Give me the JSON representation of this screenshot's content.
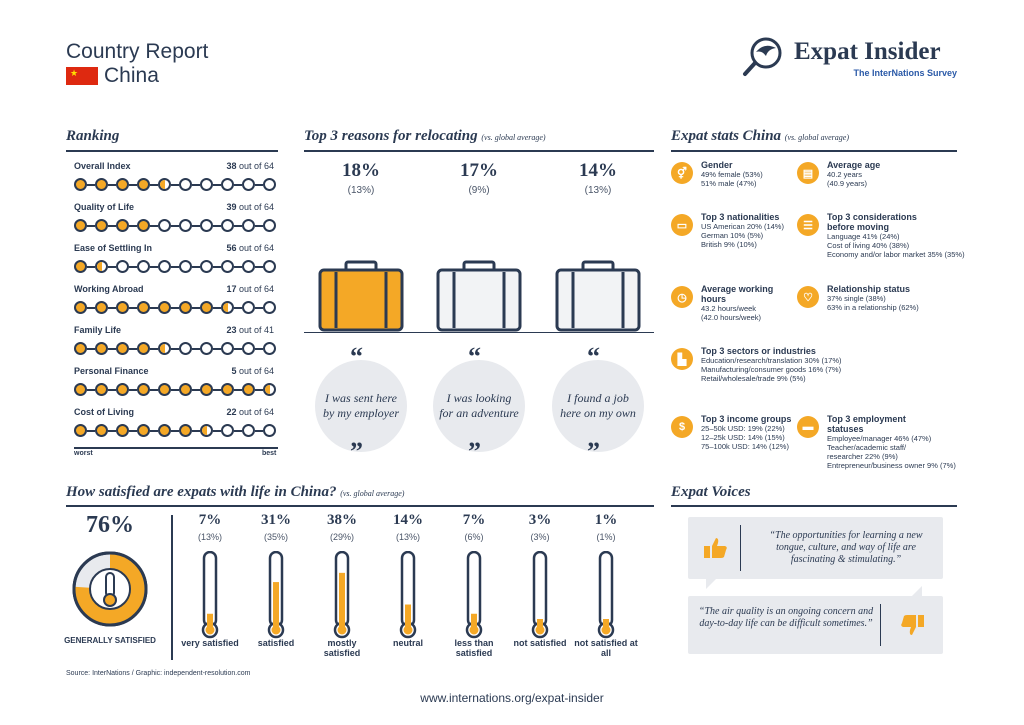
{
  "header": {
    "report_title": "Country Report",
    "country": "China",
    "brand_name": "Expat Insider",
    "brand_sub": "The InterNations Survey"
  },
  "ranking": {
    "title": "Ranking",
    "items": [
      {
        "label": "Overall Index",
        "rank": "38",
        "of": "out of 64",
        "fill": 4.5
      },
      {
        "label": "Quality of Life",
        "rank": "39",
        "of": "out of 64",
        "fill": 4
      },
      {
        "label": "Ease of Settling In",
        "rank": "56",
        "of": "out of 64",
        "fill": 1.5
      },
      {
        "label": "Working Abroad",
        "rank": "17",
        "of": "out of 64",
        "fill": 7.5
      },
      {
        "label": "Family Life",
        "rank": "23",
        "of": "out of 41",
        "fill": 4.5
      },
      {
        "label": "Personal Finance",
        "rank": "5",
        "of": "out of 64",
        "fill": 9.5
      },
      {
        "label": "Cost of Living",
        "rank": "22",
        "of": "out of 64",
        "fill": 6.5
      }
    ],
    "worst": "worst",
    "best": "best"
  },
  "reasons": {
    "title": "Top 3 reasons for relocating",
    "note": "(vs. global average)",
    "items": [
      {
        "pct": "18%",
        "global": "(13%)",
        "text": "I was sent here by my employer",
        "color": "#f4a826"
      },
      {
        "pct": "17%",
        "global": "(9%)",
        "text": "I was looking for an adventure",
        "color": "#f2f3f5"
      },
      {
        "pct": "14%",
        "global": "(13%)",
        "text": "I found a job here on my own",
        "color": "#f2f3f5"
      }
    ]
  },
  "stats": {
    "title": "Expat stats China",
    "note": "(vs. global average)",
    "gender": {
      "title": "Gender",
      "lines": [
        "49% female (53%)",
        "51% male (47%)"
      ],
      "icon": "gender-icon"
    },
    "age": {
      "title": "Average age",
      "lines": [
        "40.2 years",
        "(40.9 years)"
      ],
      "icon": "cake-icon"
    },
    "nationalities": {
      "title": "Top 3 nationalities",
      "lines": [
        "US American 20% (14%)",
        "German 10% (5%)",
        "British 9% (10%)"
      ],
      "icon": "passport-icon"
    },
    "considerations": {
      "title": "Top 3 considerations before moving",
      "lines": [
        "Language 41% (24%)",
        "Cost of living 40% (38%)",
        "Economy and/or labor market 35% (35%)"
      ],
      "icon": "checklist-icon"
    },
    "hours": {
      "title": "Average working hours",
      "lines": [
        "43.2 hours/week",
        "(42.0 hours/week)"
      ],
      "icon": "clock-icon"
    },
    "relationship": {
      "title": "Relationship status",
      "lines": [
        "37% single (38%)",
        "63% in a relationship (62%)"
      ],
      "icon": "heart-icon"
    },
    "sectors": {
      "title": "Top 3 sectors or industries",
      "lines": [
        "Education/research/translation 30% (17%)",
        "Manufacturing/consumer goods 16% (7%)",
        "Retail/wholesale/trade 9% (5%)"
      ],
      "icon": "factory-icon"
    },
    "income": {
      "title": "Top 3 income groups",
      "lines": [
        "25–50k USD: 19% (22%)",
        "12–25k USD: 14% (15%)",
        "75–100k USD: 14% (12%)"
      ],
      "icon": "money-icon"
    },
    "employment": {
      "title": "Top 3 employment statuses",
      "lines": [
        "Employee/manager 46% (47%)",
        "Teacher/academic staff/",
        "researcher 22% (9%)",
        "Entrepreneur/business owner 9% (7%)"
      ],
      "icon": "briefcase-icon"
    }
  },
  "satisfaction": {
    "title": "How satisfied are expats with life in China?",
    "note": "(vs. global average)",
    "overall_pct": "76%",
    "overall_value": 0.76,
    "overall_label": "GENERALLY SATISFIED",
    "items": [
      {
        "pct": "7%",
        "global": "(13%)",
        "label": "very satisfied",
        "value": 7
      },
      {
        "pct": "31%",
        "global": "(35%)",
        "label": "satisfied",
        "value": 31
      },
      {
        "pct": "38%",
        "global": "(29%)",
        "label": "mostly satisfied",
        "value": 38
      },
      {
        "pct": "14%",
        "global": "(13%)",
        "label": "neutral",
        "value": 14
      },
      {
        "pct": "7%",
        "global": "(6%)",
        "label": "less than satisfied",
        "value": 7
      },
      {
        "pct": "3%",
        "global": "(3%)",
        "label": "not satisfied",
        "value": 3
      },
      {
        "pct": "1%",
        "global": "(1%)",
        "label": "not satisfied at all",
        "value": 1
      }
    ]
  },
  "voices": {
    "title": "Expat Voices",
    "positive": "“The opportunities for learning a new tongue, culture, and way of life are fascinating & stimulating.”",
    "negative": "“The air quality is an ongoing concern and day-to-day life can be difficult sometimes.”"
  },
  "footer": {
    "source": "Source: InterNations / Graphic: independent-resolution.com",
    "url": "www.internations.org/expat-insider"
  },
  "colors": {
    "accent": "#f4a826",
    "navy": "#2b3a52",
    "flag": "#de2910"
  }
}
